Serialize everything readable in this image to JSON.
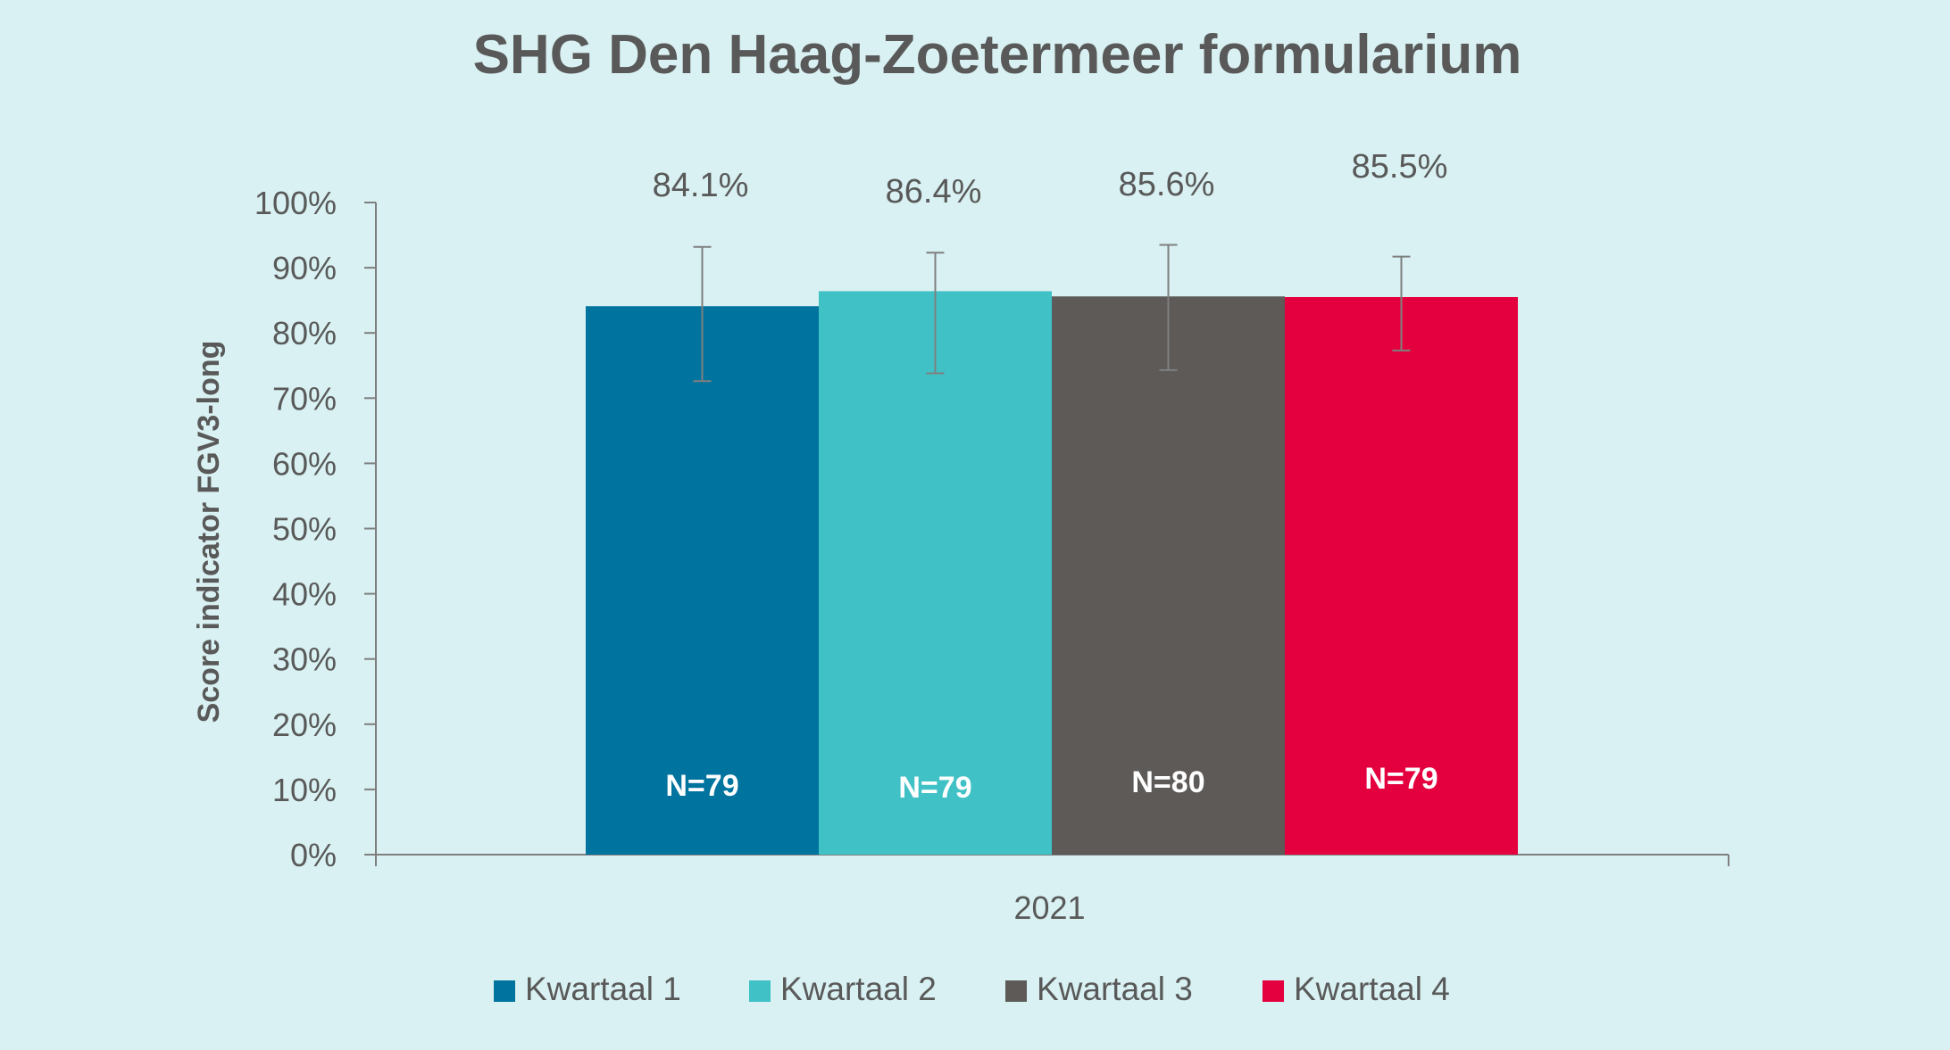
{
  "colors": {
    "background": "#d9f1f2",
    "axis": "#7f7f7f",
    "text": "#595959",
    "error_bar": "#7f7f7f"
  },
  "chart_data": {
    "type": "bar",
    "title": "SHG Den Haag-Zoetermeer formularium",
    "ylabel": "Score indicator FGV3-long",
    "xlabel": "",
    "categories": [
      "2021"
    ],
    "ylim": [
      0,
      100
    ],
    "y_unit": "%",
    "yticks": [
      "0%",
      "10%",
      "20%",
      "30%",
      "40%",
      "50%",
      "60%",
      "70%",
      "80%",
      "90%",
      "100%"
    ],
    "grid": false,
    "legend_position": "bottom",
    "series": [
      {
        "name": "Kwartaal 1",
        "color": "#00739e",
        "values": [
          84.1
        ],
        "value_label": "84.1%",
        "error_low": [
          72.6
        ],
        "error_high": [
          93.2
        ],
        "n_label": "N=79"
      },
      {
        "name": "Kwartaal 2",
        "color": "#40c1c6",
        "values": [
          86.4
        ],
        "value_label": "86.4%",
        "error_low": [
          73.8
        ],
        "error_high": [
          92.3
        ],
        "n_label": "N=79"
      },
      {
        "name": "Kwartaal 3",
        "color": "#5d5a58",
        "values": [
          85.6
        ],
        "value_label": "85.6%",
        "error_low": [
          74.3
        ],
        "error_high": [
          93.5
        ],
        "n_label": "N=80"
      },
      {
        "name": "Kwartaal 4",
        "color": "#e4003f",
        "values": [
          85.5
        ],
        "value_label": "85.5%",
        "error_low": [
          77.3
        ],
        "error_high": [
          91.7
        ],
        "n_label": "N=79"
      }
    ]
  }
}
